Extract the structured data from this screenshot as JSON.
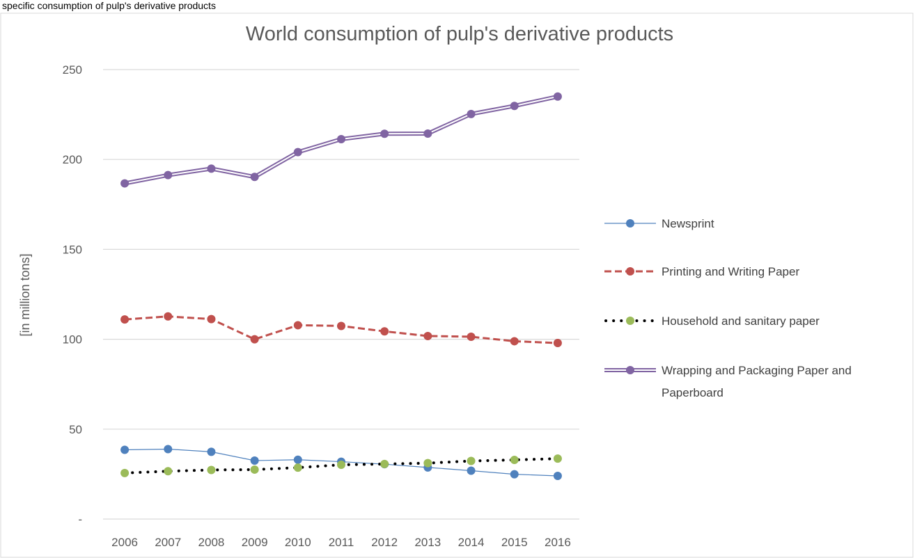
{
  "top_text": "specific consumption of pulp's derivative products",
  "chart_data": {
    "type": "line",
    "title": "World consumption of pulp's derivative products",
    "xlabel": "",
    "ylabel": "[in million tons]",
    "categories": [
      "2006",
      "2007",
      "2008",
      "2009",
      "2010",
      "2011",
      "2012",
      "2013",
      "2014",
      "2015",
      "2016"
    ],
    "y_ticks": [
      {
        "value": 0,
        "label": "-"
      },
      {
        "value": 50,
        "label": "50"
      },
      {
        "value": 100,
        "label": "100"
      },
      {
        "value": 150,
        "label": "150"
      },
      {
        "value": 200,
        "label": "200"
      },
      {
        "value": 250,
        "label": "250"
      }
    ],
    "ylim": [
      0,
      250
    ],
    "grid": true,
    "legend_position": "right",
    "series": [
      {
        "name": "Newsprint",
        "color": "#4F81BD",
        "style": "solid-thin",
        "values": [
          38.5,
          38.9,
          37.4,
          32.5,
          33.0,
          31.9,
          30.5,
          28.7,
          26.9,
          24.9,
          24.0
        ]
      },
      {
        "name": "Printing and Writing Paper",
        "color": "#C0504D",
        "style": "dashed",
        "values": [
          111.0,
          112.7,
          111.2,
          100.0,
          107.8,
          107.4,
          104.4,
          101.8,
          101.4,
          98.9,
          97.9
        ]
      },
      {
        "name": "Household and sanitary paper",
        "color": "#9BBB59",
        "line_color": "#000000",
        "style": "dotted",
        "values": [
          25.6,
          26.6,
          27.3,
          27.5,
          28.6,
          30.2,
          30.6,
          31.1,
          32.3,
          32.9,
          33.6
        ]
      },
      {
        "name": "Wrapping and Packaging Paper and Paperboard",
        "color": "#8064A2",
        "style": "double",
        "values": [
          186.7,
          191.3,
          194.9,
          190.3,
          204.1,
          211.3,
          214.3,
          214.4,
          225.3,
          229.8,
          235.0
        ]
      }
    ]
  }
}
